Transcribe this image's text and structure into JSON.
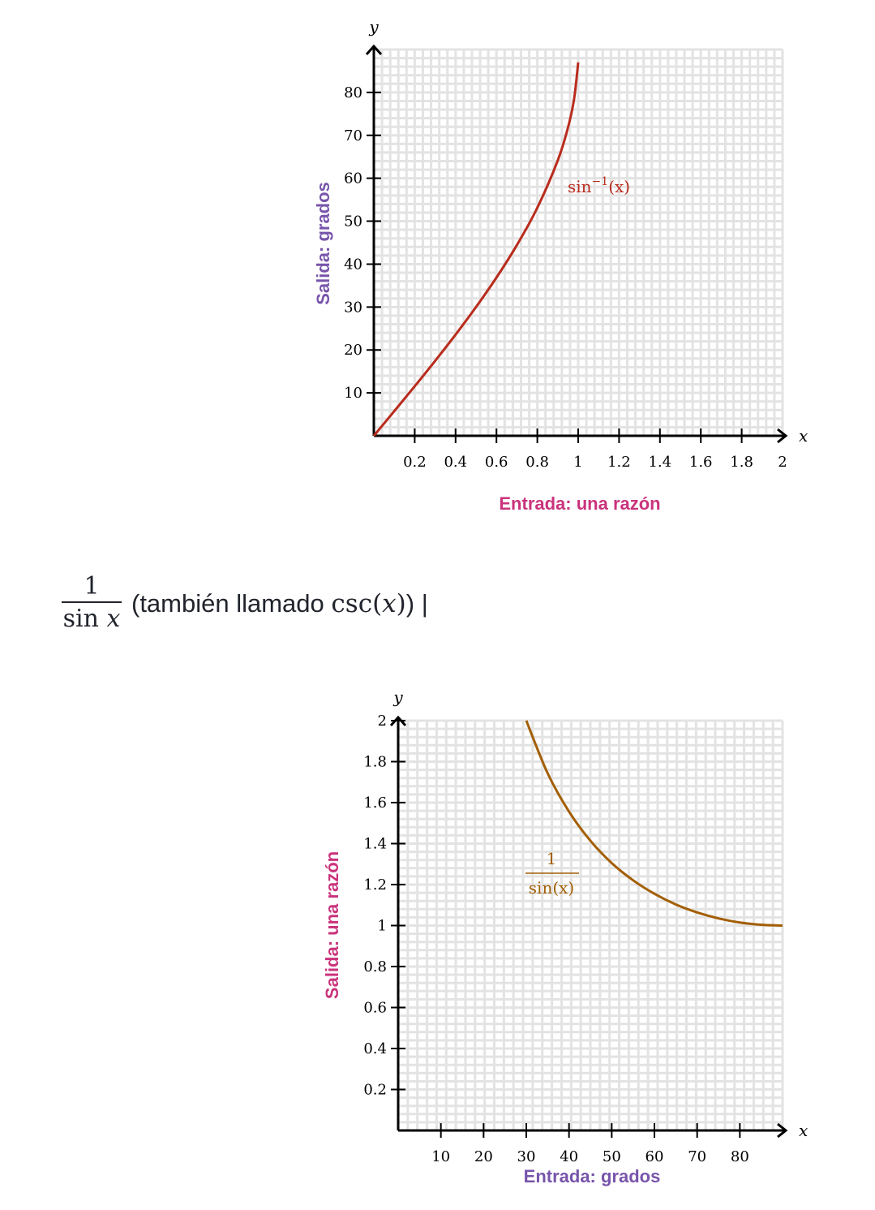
{
  "colors": {
    "curve1": "#b92c1d",
    "curve2": "#a35f06",
    "purple": "#7854ab",
    "magenta": "#ca337c",
    "text": "#21242c"
  },
  "chart_data": [
    {
      "type": "line",
      "x_axis_symbol": "x",
      "y_axis_symbol": "y",
      "xlabel": "Entrada: una razón",
      "ylabel": "Salida: grados",
      "xlim": [
        0,
        2
      ],
      "ylim": [
        0,
        90
      ],
      "x_ticks": [
        0.2,
        0.4,
        0.6,
        0.8,
        1,
        1.2,
        1.4,
        1.6,
        1.8,
        2
      ],
      "x_tick_labels": [
        "0.2",
        "0.4",
        "0.6",
        "0.8",
        "1",
        "1.2",
        "1.4",
        "1.6",
        "1.8",
        "2"
      ],
      "y_ticks": [
        10,
        20,
        30,
        40,
        50,
        60,
        70,
        80
      ],
      "y_tick_labels": [
        "10",
        "20",
        "30",
        "40",
        "50",
        "60",
        "70",
        "80"
      ],
      "grid": true,
      "series": [
        {
          "name": "sin⁻¹(x)",
          "label_main": "sin",
          "label_sup": "−1",
          "label_arg": "(x)",
          "x": [
            0,
            0.1,
            0.2,
            0.3,
            0.4,
            0.5,
            0.6,
            0.7,
            0.8,
            0.9,
            0.95,
            0.98,
            1.0
          ],
          "y": [
            0,
            5.74,
            11.54,
            17.46,
            23.58,
            30.0,
            36.87,
            44.43,
            53.13,
            64.16,
            71.81,
            78.52,
            87
          ]
        }
      ]
    },
    {
      "type": "line",
      "x_axis_symbol": "x",
      "y_axis_symbol": "y",
      "xlabel": "Entrada: grados",
      "ylabel": "Salida: una razón",
      "xlim": [
        0,
        90
      ],
      "ylim": [
        0,
        2
      ],
      "x_ticks": [
        10,
        20,
        30,
        40,
        50,
        60,
        70,
        80
      ],
      "x_tick_labels": [
        "10",
        "20",
        "30",
        "40",
        "50",
        "60",
        "70",
        "80"
      ],
      "y_ticks": [
        0.2,
        0.4,
        0.6,
        0.8,
        1,
        1.2,
        1.4,
        1.6,
        1.8,
        2
      ],
      "y_tick_labels": [
        "0.2",
        "0.4",
        "0.6",
        "0.8",
        "1",
        "1.2",
        "1.4",
        "1.6",
        "1.8",
        "2"
      ],
      "grid": true,
      "series": [
        {
          "name": "1/sin(x)",
          "label_num": "1",
          "label_den": "sin(x)",
          "x": [
            30,
            35,
            40,
            45,
            50,
            55,
            60,
            65,
            70,
            75,
            80,
            85,
            90
          ],
          "y": [
            2.0,
            1.743,
            1.556,
            1.414,
            1.305,
            1.221,
            1.155,
            1.103,
            1.064,
            1.035,
            1.015,
            1.004,
            1.0
          ]
        }
      ]
    }
  ],
  "heading": {
    "fraction_numerator": "1",
    "fraction_denominator_fn": "sin",
    "fraction_denominator_var": "x",
    "text": "(también llamado",
    "csc_fn": "csc",
    "csc_open": "(",
    "csc_var": "x",
    "csc_close": ")",
    "tail": ") |"
  }
}
